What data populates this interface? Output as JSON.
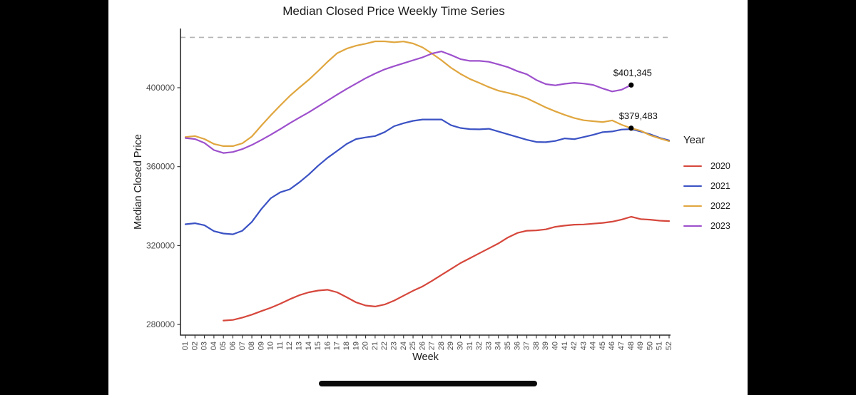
{
  "chart_data": {
    "type": "line",
    "title": "Median Closed Price Weekly Time Series",
    "xlabel": "Week",
    "ylabel": "Median Closed Price",
    "grid": false,
    "y_ticks": [
      280000,
      320000,
      360000,
      400000
    ],
    "ylim": [
      277000,
      429000
    ],
    "x_tick_labels": [
      "01",
      "02",
      "03",
      "04",
      "05",
      "06",
      "07",
      "08",
      "09",
      "10",
      "11",
      "12",
      "13",
      "14",
      "15",
      "16",
      "17",
      "18",
      "19",
      "20",
      "21",
      "22",
      "23",
      "24",
      "25",
      "26",
      "27",
      "28",
      "29",
      "30",
      "31",
      "32",
      "33",
      "34",
      "35",
      "36",
      "37",
      "38",
      "39",
      "40",
      "41",
      "42",
      "43",
      "44",
      "45",
      "46",
      "47",
      "48",
      "49",
      "50",
      "51",
      "52"
    ],
    "reference_line": {
      "style": "dashed",
      "value": 425500,
      "color": "#b3b3b3"
    },
    "legend": {
      "title": "Year",
      "position": "right",
      "entries": [
        {
          "label": "2020",
          "color": "#d6473c"
        },
        {
          "label": "2021",
          "color": "#3b52c4"
        },
        {
          "label": "2022",
          "color": "#e0a63f"
        },
        {
          "label": "2023",
          "color": "#9d50cc"
        }
      ]
    },
    "series": [
      {
        "name": "2020",
        "color": "#d6473c",
        "values": [
          null,
          null,
          null,
          null,
          282000,
          282300,
          283500,
          285000,
          286800,
          288500,
          290500,
          292800,
          294800,
          296300,
          297200,
          297600,
          296300,
          293800,
          291200,
          289600,
          289100,
          290100,
          292100,
          294600,
          297100,
          299300,
          302100,
          305100,
          308100,
          311100,
          313600,
          316100,
          318600,
          321100,
          324100,
          326400,
          327500,
          327700,
          328200,
          329500,
          330100,
          330600,
          330700,
          331100,
          331500,
          332100,
          333200,
          334600,
          333400,
          333100,
          332600,
          332400
        ]
      },
      {
        "name": "2021",
        "color": "#3b52c4",
        "values": [
          330800,
          331300,
          330300,
          327300,
          326100,
          325700,
          327500,
          332000,
          338500,
          344000,
          347000,
          348500,
          352000,
          356000,
          360500,
          364500,
          368000,
          371500,
          374000,
          374800,
          375500,
          377500,
          380500,
          382000,
          383200,
          383900,
          383900,
          383900,
          381000,
          379600,
          379000,
          378900,
          379200,
          377800,
          376400,
          375000,
          373600,
          372500,
          372400,
          373000,
          374300,
          373900,
          375000,
          376100,
          377500,
          377800,
          378800,
          379000,
          377800,
          376400,
          374600,
          373300
        ]
      },
      {
        "name": "2022",
        "color": "#e0a63f",
        "values": [
          375000,
          375500,
          374000,
          371500,
          370400,
          370400,
          371800,
          375300,
          380800,
          386000,
          391000,
          395800,
          400000,
          404000,
          408500,
          413200,
          417500,
          419800,
          421300,
          422300,
          423500,
          423500,
          423000,
          423400,
          422400,
          420400,
          417300,
          413900,
          410100,
          407000,
          404400,
          402400,
          400300,
          398500,
          397400,
          396200,
          394600,
          392300,
          390000,
          388000,
          386200,
          384600,
          383500,
          383000,
          382600,
          383400,
          381200,
          379483,
          378200,
          375900,
          374300,
          372900
        ]
      },
      {
        "name": "2023",
        "color": "#9d50cc",
        "values": [
          374500,
          374000,
          372000,
          368400,
          366900,
          367400,
          368900,
          371000,
          373500,
          376200,
          379000,
          382000,
          384800,
          387500,
          390500,
          393500,
          396500,
          399400,
          402100,
          404800,
          407200,
          409300,
          410900,
          412400,
          413900,
          415400,
          417300,
          418400,
          416600,
          414500,
          413600,
          413600,
          413100,
          411800,
          410400,
          408400,
          406800,
          403900,
          401800,
          401200,
          402000,
          402500,
          402100,
          401400,
          399600,
          398100,
          399000,
          401345,
          null,
          null,
          null,
          null
        ]
      }
    ],
    "annotations": [
      {
        "text": "$401,345",
        "week": 48,
        "value": 401345,
        "dx": 2
      },
      {
        "text": "$379,483",
        "week": 48,
        "value": 379483,
        "dx": 10
      }
    ]
  }
}
